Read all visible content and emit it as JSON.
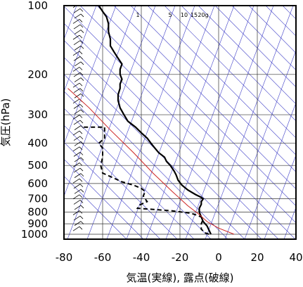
{
  "chart_data": {
    "type": "line",
    "xlabel": "気温(実線), 露点(破線)",
    "ylabel": "気圧(hPa)",
    "xlim": [
      -80,
      40
    ],
    "ylim": [
      1050,
      100
    ],
    "y_scale": "log",
    "x_ticks": [
      "-80",
      "-60",
      "-40",
      "-20",
      "0",
      "20",
      "40"
    ],
    "y_ticks": [
      "100",
      "200",
      "300",
      "400",
      "500",
      "600",
      "700",
      "800",
      "900",
      "1000"
    ],
    "grid": true,
    "mixing_ratio_labels": [
      "1",
      "5",
      "10",
      "15",
      "20g"
    ],
    "series": [
      {
        "style": "solid",
        "color": "#000000",
        "points": [
          [
            -4,
            1000
          ],
          [
            -5,
            960
          ],
          [
            -6,
            920
          ],
          [
            -8,
            880
          ],
          [
            -9,
            840
          ],
          [
            -10,
            800
          ],
          [
            -10,
            770
          ],
          [
            -9,
            740
          ],
          [
            -9,
            720
          ],
          [
            -8,
            700
          ],
          [
            -9,
            690
          ],
          [
            -12,
            670
          ],
          [
            -16,
            640
          ],
          [
            -19,
            610
          ],
          [
            -21,
            580
          ],
          [
            -22,
            550
          ],
          [
            -23,
            530
          ],
          [
            -25,
            500
          ],
          [
            -27,
            480
          ],
          [
            -28,
            460
          ],
          [
            -31,
            440
          ],
          [
            -33,
            420
          ],
          [
            -35,
            400
          ],
          [
            -37,
            380
          ],
          [
            -40,
            360
          ],
          [
            -43,
            340
          ],
          [
            -47,
            320
          ],
          [
            -49,
            300
          ],
          [
            -51,
            280
          ],
          [
            -52,
            260
          ],
          [
            -52,
            245
          ],
          [
            -51,
            230
          ],
          [
            -51,
            220
          ],
          [
            -50,
            210
          ],
          [
            -51,
            200
          ],
          [
            -51,
            190
          ],
          [
            -50,
            180
          ],
          [
            -52,
            170
          ],
          [
            -54,
            160
          ],
          [
            -56,
            150
          ],
          [
            -56,
            140
          ],
          [
            -57,
            130
          ],
          [
            -57,
            120
          ],
          [
            -58,
            112
          ],
          [
            -60,
            106
          ],
          [
            -62,
            100
          ]
        ]
      },
      {
        "style": "dashed",
        "color": "#000000",
        "points": [
          [
            -5,
            1000
          ],
          [
            -7,
            985
          ],
          [
            -9,
            950
          ],
          [
            -9,
            900
          ],
          [
            -8,
            860
          ],
          [
            -9,
            840
          ],
          [
            -14,
            810
          ],
          [
            -24,
            790
          ],
          [
            -42,
            770
          ],
          [
            -41,
            745
          ],
          [
            -37,
            720
          ],
          [
            -38,
            700
          ],
          [
            -39,
            680
          ],
          [
            -38,
            650
          ],
          [
            -40,
            630
          ],
          [
            -44,
            610
          ],
          [
            -50,
            590
          ],
          [
            -60,
            540
          ],
          [
            -61,
            500
          ],
          [
            -60,
            460
          ],
          [
            -60,
            420
          ],
          [
            -62,
            400
          ],
          [
            -59,
            380
          ],
          [
            -59,
            340
          ],
          [
            -70,
            340
          ]
        ]
      },
      {
        "style": "solid",
        "color": "#cc2222",
        "points": [
          [
            8,
            1000
          ],
          [
            0,
            940
          ],
          [
            -6,
            880
          ],
          [
            -10,
            820
          ],
          [
            -16,
            750
          ],
          [
            -24,
            650
          ],
          [
            -34,
            540
          ],
          [
            -44,
            440
          ],
          [
            -56,
            350
          ],
          [
            -67,
            280
          ],
          [
            -78,
            230
          ]
        ]
      }
    ]
  }
}
